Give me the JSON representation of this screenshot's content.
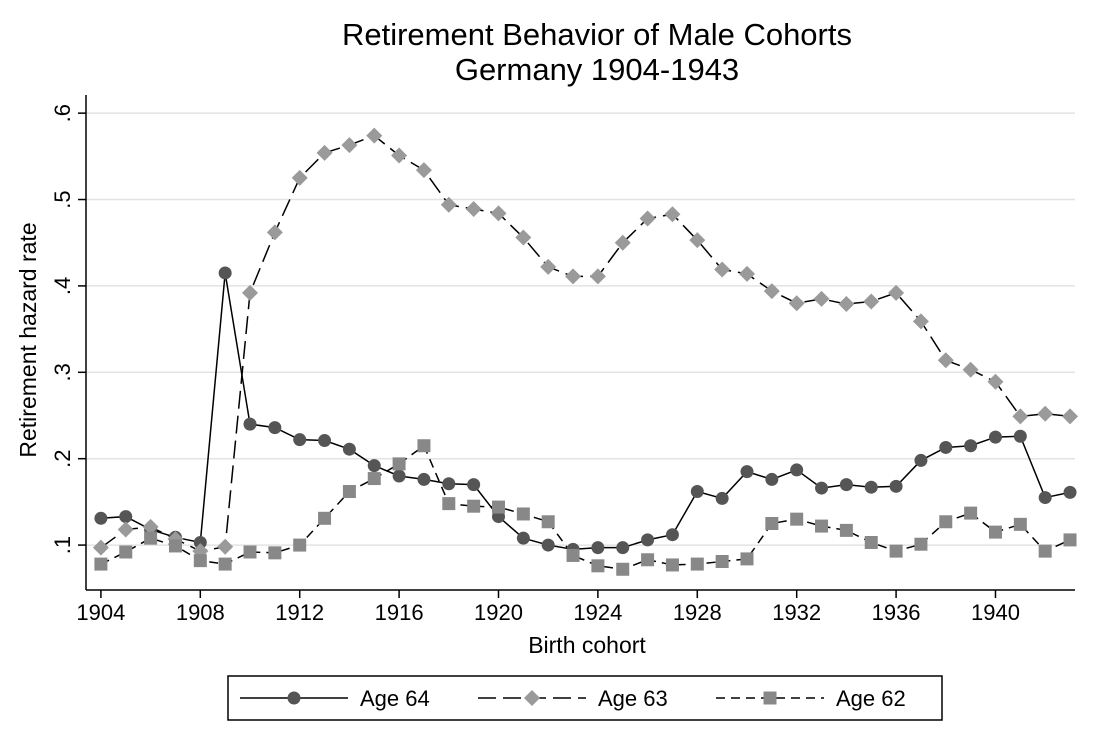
{
  "chart_data": {
    "type": "line",
    "title": [
      "Retirement Behavior of Male Cohorts",
      "Germany 1904-1943"
    ],
    "xlabel": "Birth cohort",
    "ylabel": "Retirement hazard rate",
    "x": [
      1904,
      1905,
      1906,
      1907,
      1908,
      1909,
      1910,
      1911,
      1912,
      1913,
      1914,
      1915,
      1916,
      1917,
      1918,
      1919,
      1920,
      1921,
      1922,
      1923,
      1924,
      1925,
      1926,
      1927,
      1928,
      1929,
      1930,
      1931,
      1932,
      1933,
      1934,
      1935,
      1936,
      1937,
      1938,
      1939,
      1940,
      1941,
      1942,
      1943
    ],
    "series": [
      {
        "name": "Age 64",
        "color": "#555555",
        "marker": "circle",
        "dash": "solid",
        "values": [
          0.131,
          0.133,
          0.118,
          0.109,
          0.103,
          0.415,
          0.24,
          0.236,
          0.222,
          0.221,
          0.211,
          0.192,
          0.18,
          0.176,
          0.171,
          0.17,
          0.133,
          0.108,
          0.1,
          0.095,
          0.097,
          0.097,
          0.106,
          0.112,
          0.162,
          0.154,
          0.185,
          0.176,
          0.187,
          0.166,
          0.17,
          0.167,
          0.168,
          0.198,
          0.213,
          0.215,
          0.225,
          0.226,
          0.155,
          0.161
        ]
      },
      {
        "name": "Age 63",
        "color": "#9a9a9a",
        "marker": "diamond",
        "dash": "longdash",
        "values": [
          0.097,
          0.118,
          0.121,
          0.107,
          0.093,
          0.098,
          0.392,
          0.462,
          0.525,
          0.554,
          0.563,
          0.574,
          0.551,
          0.534,
          0.494,
          0.489,
          0.484,
          0.456,
          0.422,
          0.411,
          0.411,
          0.45,
          0.478,
          0.483,
          0.453,
          0.419,
          0.414,
          0.394,
          0.38,
          0.385,
          0.379,
          0.382,
          0.392,
          0.359,
          0.314,
          0.303,
          0.289,
          0.249,
          0.252,
          0.249
        ]
      },
      {
        "name": "Age 62",
        "color": "#888888",
        "marker": "square",
        "dash": "dash",
        "values": [
          0.078,
          0.092,
          0.108,
          0.099,
          0.082,
          0.078,
          0.092,
          0.091,
          0.1,
          0.131,
          0.162,
          0.177,
          0.194,
          0.215,
          0.148,
          0.145,
          0.144,
          0.136,
          0.127,
          0.088,
          0.076,
          0.072,
          0.083,
          0.077,
          0.078,
          0.081,
          0.084,
          0.125,
          0.13,
          0.122,
          0.117,
          0.103,
          0.093,
          0.101,
          0.127,
          0.137,
          0.115,
          0.124,
          0.093,
          0.106
        ]
      }
    ],
    "xlim": [
      1903.4,
      1943.2
    ],
    "ylim": [
      0.048,
      0.621
    ],
    "xticks": [
      1904,
      1908,
      1912,
      1916,
      1920,
      1924,
      1928,
      1932,
      1936,
      1940
    ],
    "yticks": [
      {
        "value": 0.1,
        "label": ".1"
      },
      {
        "value": 0.2,
        "label": ".2"
      },
      {
        "value": 0.3,
        "label": ".3"
      },
      {
        "value": 0.4,
        "label": ".4"
      },
      {
        "value": 0.5,
        "label": ".5"
      },
      {
        "value": 0.6,
        "label": ".6"
      }
    ],
    "grid": true,
    "legend": "bottom"
  }
}
